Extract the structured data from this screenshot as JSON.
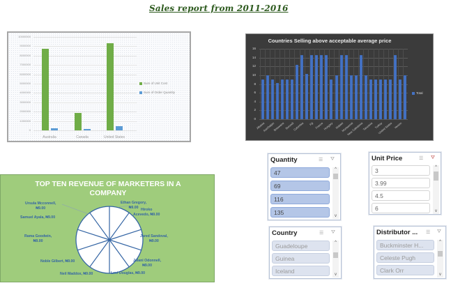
{
  "report_title": "Sales report from 2011-2016",
  "chart_data": [
    {
      "type": "bar",
      "title": "",
      "categories": [
        "Australia",
        "Canada",
        "United States"
      ],
      "series": [
        {
          "name": "Sum of Unit Cost",
          "color": "#70ad47",
          "values": [
            8700000,
            1900000,
            9300000
          ]
        },
        {
          "name": "Sum of Order Quantity",
          "color": "#5b9bd5",
          "values": [
            200000,
            130000,
            420000
          ]
        }
      ],
      "yticks": [
        "0",
        "1000000",
        "2000000",
        "3000000",
        "4000000",
        "5000000",
        "6000000",
        "7000000",
        "8000000",
        "9000000",
        "10000000"
      ],
      "ylim": [
        0,
        10000000
      ],
      "xlabel": "",
      "ylabel": "",
      "grid": true,
      "legend_position": "right"
    },
    {
      "type": "bar",
      "title": "Countries Selling above acceptable average price",
      "categories": [
        "Albania",
        "",
        "Azerbaijan",
        "",
        "Botswana",
        "",
        "Burundi",
        "",
        "Colombia",
        "",
        "Fiji",
        "",
        "France",
        "",
        "Hungary",
        "",
        "Malawi",
        "",
        "Montserrat",
        "",
        "New Caledonia",
        "",
        "Tanzania",
        "",
        "Turkey",
        "",
        "United States",
        "",
        "Yemen",
        ""
      ],
      "visible_tick_labels": [
        "Albania",
        "Azerbaijan",
        "Botswana",
        "Burundi",
        "Colombia",
        "Fiji",
        "France",
        "Hungary",
        "Malawi",
        "Montserrat",
        "New Caledonia",
        "Tanzania",
        "Turkey",
        "United States",
        "Yemen"
      ],
      "series": [
        {
          "name": "Total",
          "color": "#4472c4",
          "values": [
            9,
            10,
            9,
            8.3,
            9,
            9,
            9,
            12.3,
            14.5,
            10.3,
            14.5,
            14.5,
            14.5,
            14.5,
            9,
            10,
            14.5,
            14.5,
            10,
            10,
            14.5,
            10,
            9,
            9,
            9,
            9,
            9,
            14.5,
            9,
            10
          ]
        }
      ],
      "yticks": [
        "0",
        "2",
        "4",
        "6",
        "8",
        "10",
        "12",
        "14",
        "16"
      ],
      "ylim": [
        0,
        16
      ],
      "xlabel": "",
      "ylabel": "",
      "grid": true,
      "legend_position": "right"
    },
    {
      "type": "pie",
      "title": "TOP TEN REVENUE OF MARKETERS IN A COMPANY",
      "title_lines": [
        "TOP TEN REVENUE OF MARKETERS IN A",
        "COMPANY"
      ],
      "slices": [
        {
          "label": "Ethan Gregory",
          "value": 9.0,
          "display": "Ethan Gregory,",
          "amount": "₦9.00"
        },
        {
          "label": "Hiroko Acevedo",
          "value": 9.0,
          "display": "Hiroko",
          "display2": "Acevedo, ₦9.00"
        },
        {
          "label": "Jared Sandoval",
          "value": 9.0,
          "display": "Jared Sandoval,",
          "amount": "₦9.00"
        },
        {
          "label": "Jalani Odonnell",
          "value": 9.0,
          "display": "Jalani Odonnell,",
          "amount": "₦9.00"
        },
        {
          "label": "Levi Douglas",
          "value": 9.0,
          "display": "Levi Douglas, ₦9.00"
        },
        {
          "label": "Neil Maddox",
          "value": 9.0,
          "display": "Neil Maddox, ₦9.00"
        },
        {
          "label": "Noble Gilbert",
          "value": 9.0,
          "display": "Noble Gilbert, ₦9.00"
        },
        {
          "label": "Rama Goodwin",
          "value": 9.0,
          "display": "Rama Goodwin,",
          "amount": "₦9.00"
        },
        {
          "label": "Samuel Ayala",
          "value": 9.0,
          "display": "Samuel Ayala, ₦9.00"
        },
        {
          "label": "Ursula Mcconnell",
          "value": 9.0,
          "display": "Ursula Mcconnell,",
          "amount": "₦9.00"
        }
      ],
      "background": "#9fcc7c",
      "label_color": "#3465a4"
    }
  ],
  "slicers": {
    "quantity": {
      "header": "Quantity",
      "items": [
        "47",
        "69",
        "116",
        "135"
      ]
    },
    "unit_price": {
      "header": "Unit Price",
      "items": [
        "3",
        "3.99",
        "4.5",
        "6"
      ]
    },
    "country": {
      "header": "Country",
      "items": [
        "Guadeloupe",
        "Guinea",
        "Iceland"
      ]
    },
    "distributor": {
      "header": "Distributor ...",
      "items": [
        "Buckminster H...",
        "Celeste Pugh",
        "Clark Orr"
      ]
    }
  },
  "icons": {
    "multiselect": "☰",
    "clear_filter": "⛛",
    "scroll_up": "^",
    "scroll_down": "v"
  }
}
